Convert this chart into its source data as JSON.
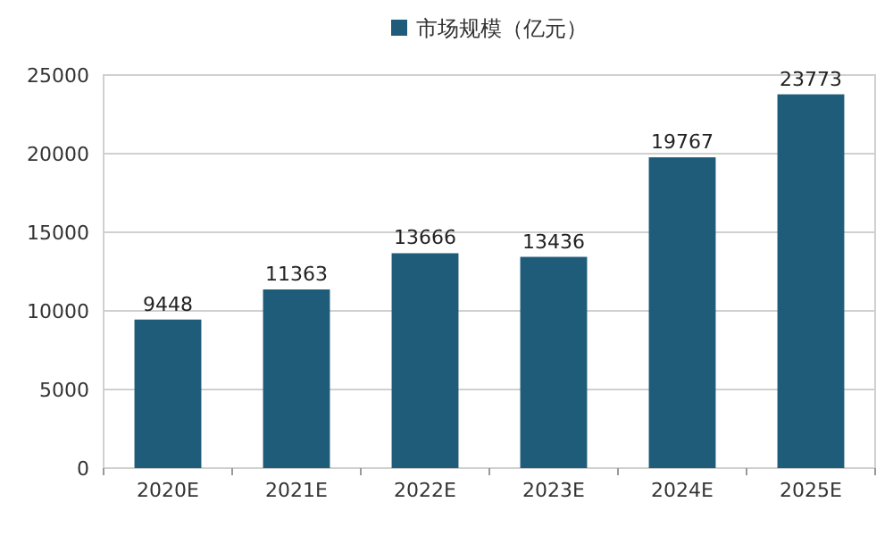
{
  "chart_data": {
    "type": "bar",
    "categories": [
      "2020E",
      "2021E",
      "2022E",
      "2023E",
      "2024E",
      "2025E"
    ],
    "series": [
      {
        "name": "市场规模（亿元）",
        "color": "#1e5c7a",
        "values": [
          9448,
          11363,
          13666,
          13436,
          19767,
          23773
        ]
      }
    ],
    "ylim": [
      0,
      25000
    ],
    "yticks": [
      0,
      5000,
      10000,
      15000,
      20000,
      25000
    ],
    "grid": "y",
    "legend": "top",
    "data_labels": true
  }
}
